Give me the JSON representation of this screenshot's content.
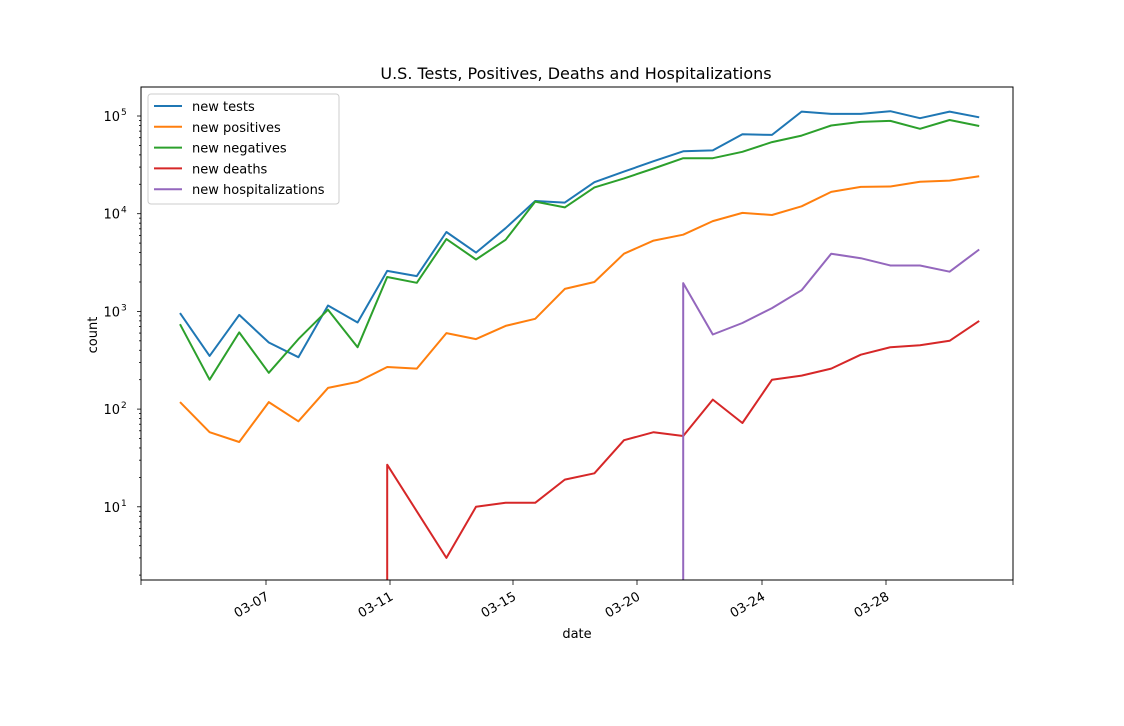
{
  "chart_data": {
    "type": "line",
    "title": "U.S. Tests, Positives, Deaths and Hospitalizations",
    "xlabel": "date",
    "ylabel": "count",
    "yscale": "log",
    "legend_position": "top-left",
    "grid": false,
    "x": [
      "03-04",
      "03-05",
      "03-06",
      "03-07",
      "03-08",
      "03-09",
      "03-10",
      "03-11",
      "03-12",
      "03-13",
      "03-14",
      "03-15",
      "03-16",
      "03-17",
      "03-18",
      "03-19",
      "03-20",
      "03-21",
      "03-22",
      "03-23",
      "03-24",
      "03-25",
      "03-26",
      "03-27",
      "03-28",
      "03-29",
      "03-30",
      "03-31"
    ],
    "x_tick_labels": [
      "03-07",
      "03-11",
      "03-15",
      "03-20",
      "03-24",
      "03-28"
    ],
    "y_tick_labels": [
      {
        "base": "10",
        "exp": "1"
      },
      {
        "base": "10",
        "exp": "2"
      },
      {
        "base": "10",
        "exp": "3"
      },
      {
        "base": "10",
        "exp": "4"
      },
      {
        "base": "10",
        "exp": "5"
      }
    ],
    "series": [
      {
        "name": "new tests",
        "color": "#1f77b4",
        "values": [
          960,
          350,
          920,
          480,
          340,
          1150,
          770,
          2600,
          2300,
          6500,
          4000,
          7100,
          13500,
          13000,
          21000,
          27000,
          34500,
          43500,
          44500,
          65000,
          64000,
          111000,
          105000,
          105000,
          112000,
          95000,
          111000,
          97000
        ]
      },
      {
        "name": "new positives",
        "color": "#ff7f0e",
        "values": [
          118,
          58,
          46,
          118,
          75,
          165,
          190,
          270,
          260,
          600,
          520,
          710,
          840,
          1700,
          2000,
          3900,
          5300,
          6100,
          8400,
          10200,
          9700,
          11900,
          16700,
          18800,
          19000,
          21200,
          21800,
          24200
        ]
      },
      {
        "name": "new negatives",
        "color": "#2ca02c",
        "values": [
          740,
          200,
          610,
          235,
          520,
          1040,
          430,
          2250,
          1960,
          5500,
          3400,
          5400,
          13300,
          11600,
          18600,
          23000,
          29000,
          37000,
          37000,
          43000,
          54000,
          63000,
          80000,
          87000,
          89000,
          74000,
          91000,
          79000
        ]
      },
      {
        "name": "new deaths",
        "color": "#d62728",
        "values": [
          null,
          null,
          null,
          null,
          null,
          null,
          null,
          27,
          9,
          3,
          10,
          11,
          11,
          19,
          22,
          48,
          58,
          53,
          125,
          72,
          200,
          220,
          260,
          360,
          430,
          450,
          500,
          800
        ]
      },
      {
        "name": "new hospitalizations",
        "color": "#9467bd",
        "values": [
          null,
          null,
          null,
          null,
          null,
          null,
          null,
          null,
          null,
          null,
          null,
          null,
          null,
          null,
          null,
          null,
          null,
          1950,
          580,
          760,
          1080,
          1650,
          3900,
          3500,
          2950,
          2950,
          2550,
          4300
        ]
      }
    ]
  }
}
